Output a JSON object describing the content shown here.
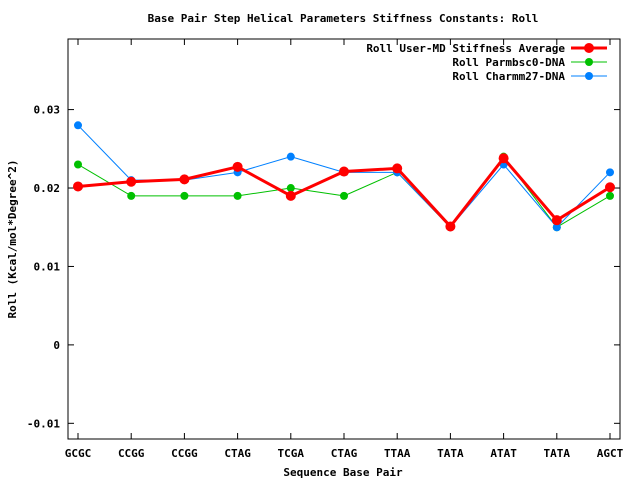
{
  "chart_data": {
    "type": "line",
    "title": "Base Pair Step Helical Parameters Stiffness Constants: Roll",
    "xlabel": "Sequence Base Pair",
    "ylabel": "Roll (Kcal/mol*Degree^2)",
    "categories": [
      "GCGC",
      "CCGG",
      "CCGG",
      "CTAG",
      "TCGA",
      "CTAG",
      "TTAA",
      "TATA",
      "ATAT",
      "TATA",
      "AGCT"
    ],
    "ylim": [
      -0.012,
      0.039
    ],
    "yticks": [
      -0.01,
      0,
      0.01,
      0.02,
      0.03
    ],
    "ytick_labels": [
      "-0.01",
      "0",
      "0.01",
      "0.02",
      "0.03"
    ],
    "grid": false,
    "legend_position": "top-right",
    "series": [
      {
        "name": "Roll User-MD Stiffness Average",
        "color": "#ff0000",
        "values": [
          0.0202,
          0.0208,
          0.0211,
          0.0227,
          0.019,
          0.0221,
          0.0225,
          0.0151,
          0.0238,
          0.0159,
          0.0201
        ]
      },
      {
        "name": "Roll Parmbsc0-DNA",
        "color": "#00c000",
        "values": [
          0.023,
          0.019,
          0.019,
          0.019,
          0.02,
          0.019,
          0.022,
          0.015,
          0.024,
          0.015,
          0.019
        ]
      },
      {
        "name": "Roll Charmm27-DNA",
        "color": "#0080ff",
        "values": [
          0.028,
          0.021,
          0.021,
          0.022,
          0.024,
          0.022,
          0.022,
          0.015,
          0.023,
          0.015,
          0.022
        ]
      }
    ]
  }
}
